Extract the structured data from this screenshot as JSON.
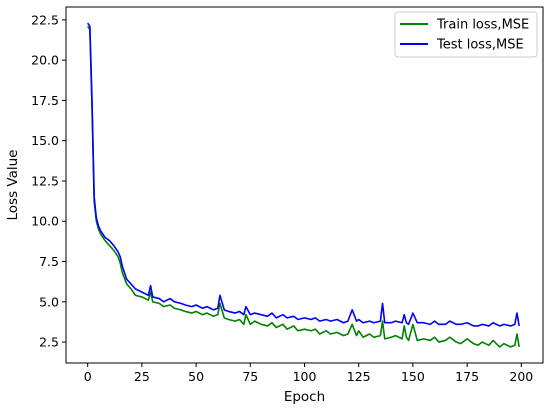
{
  "chart_data": {
    "type": "line",
    "xlabel": "Epoch",
    "ylabel": "Loss Value",
    "xlim": [
      -10,
      210
    ],
    "ylim": [
      1.2,
      23.3
    ],
    "xticks": [
      0,
      25,
      50,
      75,
      100,
      125,
      150,
      175,
      200
    ],
    "xtick_labels": [
      "0",
      "25",
      "50",
      "75",
      "100",
      "125",
      "150",
      "175",
      "200"
    ],
    "yticks": [
      2.5,
      5.0,
      7.5,
      10.0,
      12.5,
      15.0,
      17.5,
      20.0,
      22.5
    ],
    "ytick_labels": [
      "2.5",
      "5.0",
      "7.5",
      "10.0",
      "12.5",
      "15.0",
      "17.5",
      "20.0",
      "22.5"
    ],
    "grid": false,
    "legend_position": "upper right",
    "series": [
      {
        "name": "Train loss,MSE",
        "color": "#008000",
        "x": [
          0,
          1,
          2,
          3,
          4,
          5,
          6,
          7,
          8,
          10,
          12,
          14,
          15,
          16,
          18,
          20,
          22,
          25,
          28,
          29,
          30,
          33,
          35,
          38,
          40,
          43,
          45,
          48,
          50,
          53,
          55,
          58,
          60,
          61,
          63,
          65,
          68,
          70,
          72,
          73,
          75,
          77,
          80,
          83,
          85,
          87,
          90,
          92,
          95,
          97,
          100,
          103,
          105,
          107,
          110,
          112,
          115,
          118,
          120,
          122,
          124,
          125,
          127,
          130,
          132,
          135,
          136,
          137,
          140,
          142,
          145,
          146,
          147,
          148,
          150,
          152,
          155,
          158,
          160,
          162,
          165,
          167,
          170,
          172,
          175,
          178,
          180,
          182,
          185,
          187,
          190,
          192,
          195,
          197,
          198,
          199
        ],
        "y": [
          22.1,
          21.9,
          17.0,
          11.2,
          10.0,
          9.5,
          9.2,
          9.0,
          8.8,
          8.5,
          8.2,
          7.8,
          7.4,
          6.8,
          6.1,
          5.8,
          5.4,
          5.3,
          5.1,
          5.6,
          5.0,
          4.9,
          4.7,
          4.8,
          4.6,
          4.5,
          4.4,
          4.3,
          4.4,
          4.2,
          4.3,
          4.1,
          4.2,
          4.9,
          4.0,
          3.9,
          3.8,
          3.9,
          3.6,
          4.2,
          3.6,
          3.8,
          3.6,
          3.5,
          3.7,
          3.4,
          3.6,
          3.3,
          3.5,
          3.2,
          3.3,
          3.2,
          3.3,
          3.0,
          3.2,
          3.0,
          3.1,
          2.9,
          3.0,
          3.6,
          2.9,
          3.2,
          2.8,
          3.0,
          2.8,
          2.9,
          3.8,
          2.7,
          2.8,
          2.9,
          2.7,
          3.5,
          2.8,
          2.6,
          3.6,
          2.6,
          2.7,
          2.6,
          2.8,
          2.5,
          2.6,
          2.8,
          2.5,
          2.4,
          2.7,
          2.4,
          2.3,
          2.5,
          2.3,
          2.6,
          2.2,
          2.4,
          2.2,
          2.3,
          3.0,
          2.2
        ]
      },
      {
        "name": "Test loss,MSE",
        "color": "#0000ff",
        "x": [
          0,
          1,
          2,
          3,
          4,
          5,
          6,
          7,
          8,
          10,
          12,
          14,
          15,
          16,
          18,
          20,
          22,
          25,
          28,
          29,
          30,
          33,
          35,
          38,
          40,
          43,
          45,
          48,
          50,
          53,
          55,
          58,
          60,
          61,
          63,
          65,
          68,
          70,
          72,
          73,
          75,
          77,
          80,
          83,
          85,
          87,
          90,
          92,
          95,
          97,
          100,
          103,
          105,
          107,
          110,
          112,
          115,
          118,
          120,
          122,
          124,
          125,
          127,
          130,
          132,
          135,
          136,
          137,
          140,
          142,
          145,
          146,
          147,
          148,
          150,
          152,
          155,
          158,
          160,
          162,
          165,
          167,
          170,
          172,
          175,
          178,
          180,
          182,
          185,
          187,
          190,
          192,
          195,
          197,
          198,
          199
        ],
        "y": [
          22.3,
          22.1,
          17.5,
          11.5,
          10.2,
          9.7,
          9.4,
          9.2,
          9.0,
          8.8,
          8.5,
          8.1,
          7.8,
          7.2,
          6.4,
          6.1,
          5.8,
          5.6,
          5.4,
          6.0,
          5.3,
          5.2,
          5.0,
          5.2,
          5.0,
          4.9,
          4.8,
          4.7,
          4.8,
          4.6,
          4.7,
          4.5,
          4.6,
          5.4,
          4.5,
          4.4,
          4.3,
          4.4,
          4.2,
          4.7,
          4.2,
          4.3,
          4.2,
          4.1,
          4.3,
          4.0,
          4.2,
          4.0,
          4.1,
          3.9,
          4.0,
          3.9,
          4.0,
          3.8,
          3.9,
          3.8,
          3.9,
          3.7,
          3.8,
          4.5,
          3.8,
          3.9,
          3.7,
          3.8,
          3.7,
          3.8,
          4.9,
          3.7,
          3.7,
          3.8,
          3.7,
          4.2,
          3.7,
          3.6,
          4.3,
          3.7,
          3.7,
          3.6,
          3.8,
          3.6,
          3.6,
          3.8,
          3.6,
          3.6,
          3.7,
          3.5,
          3.5,
          3.6,
          3.5,
          3.7,
          3.5,
          3.6,
          3.5,
          3.6,
          4.3,
          3.5
        ]
      }
    ]
  }
}
